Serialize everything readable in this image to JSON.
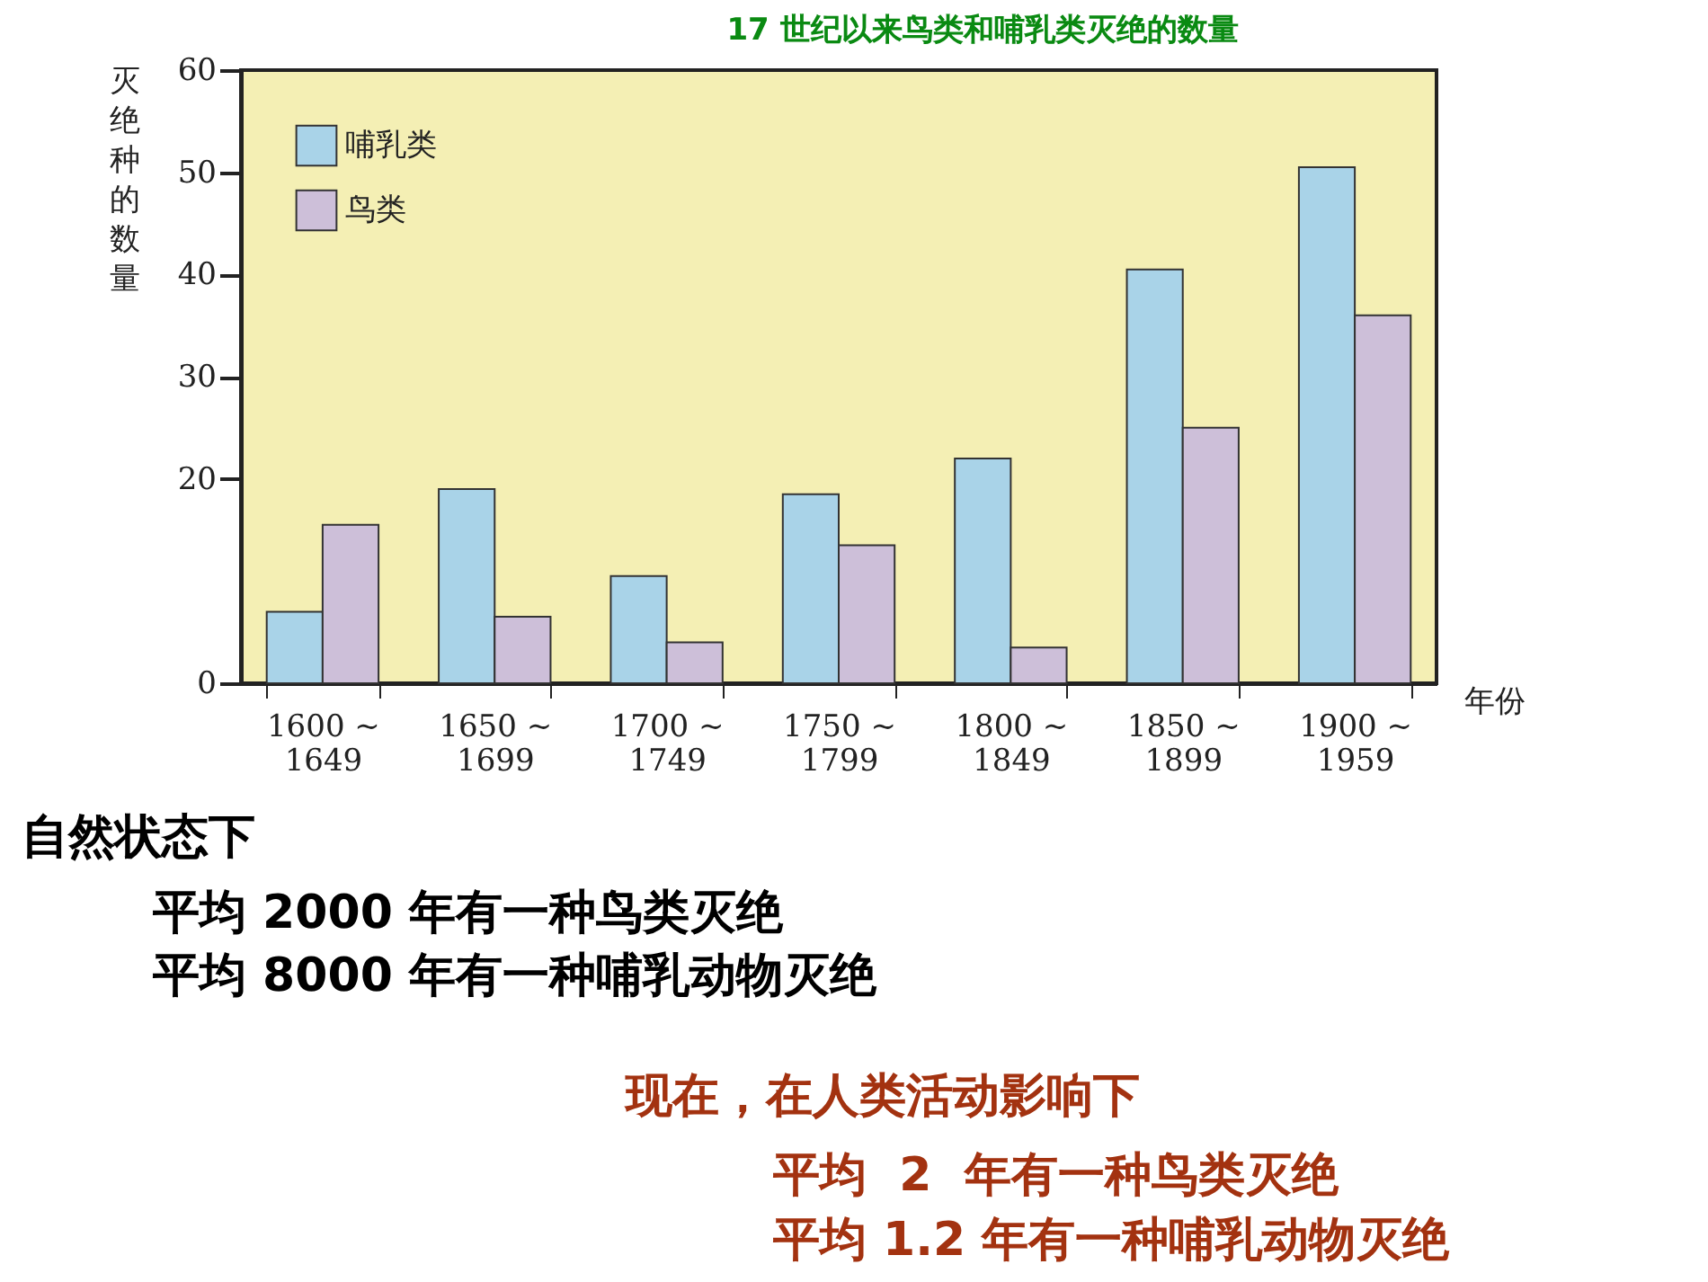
{
  "chart_data": {
    "type": "bar",
    "title": "17 世纪以来鸟类和哺乳类灭绝的数量",
    "ylabel": "灭绝种的数量",
    "xlabel": "年份",
    "categories": [
      "1600 ~ 1649",
      "1650 ~ 1699",
      "1700 ~ 1749",
      "1750 ~ 1799",
      "1800 ~ 1849",
      "1850 ~ 1899",
      "1900 ~ 1959"
    ],
    "series": [
      {
        "name": "哺乳类",
        "color": "#a9d3e8",
        "values": [
          7,
          19,
          10.5,
          18.5,
          22,
          40.5,
          50.5
        ]
      },
      {
        "name": "鸟类",
        "color": "#cdbfd9",
        "values": [
          15.5,
          6.5,
          4,
          13.5,
          3.5,
          25,
          36
        ]
      }
    ],
    "ylim": [
      0,
      60
    ],
    "yticks": [
      0,
      20,
      30,
      40,
      50,
      60
    ],
    "legend": "top left",
    "annotations": [
      "自然状态下",
      "平均 2000 年有一种鸟类灭绝",
      "平均 8000 年有一种哺乳动物灭绝",
      "现在，在人类活动影响下",
      "平均  2  年有一种鸟类灭绝",
      "平均 1.2 年有一种哺乳动物灭绝"
    ]
  }
}
